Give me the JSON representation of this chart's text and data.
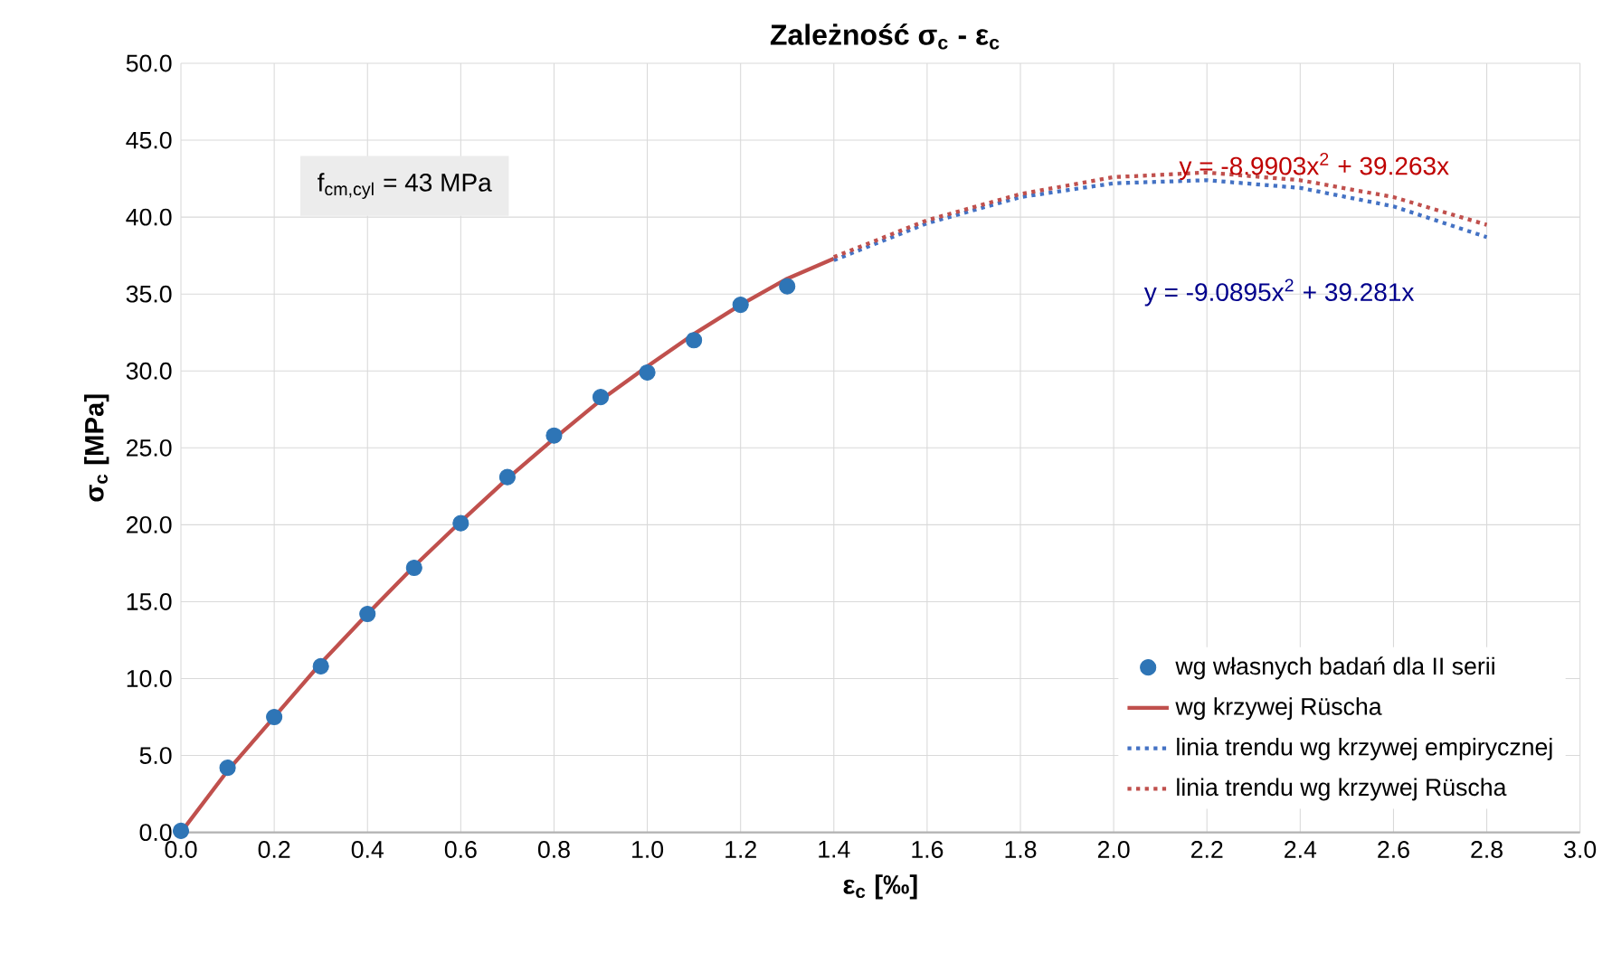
{
  "chart_data": {
    "type": "line",
    "title": "Zależność σ$_{c}$ - ε$_{c}$",
    "xlabel": "ε$_{c}$ [‰]",
    "ylabel": "σ$_{c}$ [MPa]",
    "xlim": [
      0,
      3
    ],
    "ylim": [
      0,
      50
    ],
    "xticks": [
      {
        "value": 0,
        "label": "0.0"
      },
      {
        "value": 0.2,
        "label": "0.2"
      },
      {
        "value": 0.4,
        "label": "0.4"
      },
      {
        "value": 0.6,
        "label": "0.6"
      },
      {
        "value": 0.8,
        "label": "0.8"
      },
      {
        "value": 1.0,
        "label": "1.0"
      },
      {
        "value": 1.2,
        "label": "1.2"
      },
      {
        "value": 1.4,
        "label": "1.4"
      },
      {
        "value": 1.6,
        "label": "1.6"
      },
      {
        "value": 1.8,
        "label": "1.8"
      },
      {
        "value": 2.0,
        "label": "2.0"
      },
      {
        "value": 2.2,
        "label": "2.2"
      },
      {
        "value": 2.4,
        "label": "2.4"
      },
      {
        "value": 2.6,
        "label": "2.6"
      },
      {
        "value": 2.8,
        "label": "2.8"
      },
      {
        "value": 3.0,
        "label": "3.0"
      }
    ],
    "yticks": [
      {
        "value": 0,
        "label": "0.0"
      },
      {
        "value": 5,
        "label": "5.0"
      },
      {
        "value": 10,
        "label": "10.0"
      },
      {
        "value": 15,
        "label": "15.0"
      },
      {
        "value": 20,
        "label": "20.0"
      },
      {
        "value": 25,
        "label": "25.0"
      },
      {
        "value": 30,
        "label": "30.0"
      },
      {
        "value": 35,
        "label": "35.0"
      },
      {
        "value": 40,
        "label": "40.0"
      },
      {
        "value": 45,
        "label": "45.0"
      },
      {
        "value": 50,
        "label": "50.0"
      }
    ],
    "grid": true,
    "legend": "bottom right",
    "marker": "circle",
    "series": [
      {
        "name": "wg własnych badań dla II serii",
        "type": "scatter",
        "color": "#2e75b6",
        "x": [
          0,
          0.1,
          0.2,
          0.3,
          0.4,
          0.5,
          0.6,
          0.7,
          0.8,
          0.9,
          1.0,
          1.1,
          1.2,
          1.3
        ],
        "values": [
          0.1,
          4.2,
          7.5,
          10.8,
          14.2,
          17.2,
          20.1,
          23.1,
          25.8,
          28.3,
          29.9,
          32.0,
          34.3,
          35.5
        ]
      },
      {
        "name": "wg krzywej Rüscha",
        "marker": "none",
        "line_style": "solid",
        "color": "#c0504d",
        "x": [
          0,
          0.1,
          0.2,
          0.3,
          0.4,
          0.5,
          0.6,
          0.7,
          0.8,
          0.9,
          1.0,
          1.1,
          1.2,
          1.3,
          1.4
        ],
        "values": [
          0,
          4.0,
          7.5,
          11.0,
          14.2,
          17.3,
          20.2,
          23.0,
          25.6,
          28.1,
          30.3,
          32.4,
          34.3,
          36.0,
          37.3
        ]
      },
      {
        "name": "linia trendu wg krzywej empirycznej",
        "marker": "none",
        "line_style": "dotted",
        "color": "#4472c4",
        "x": [
          1.4,
          1.6,
          1.8,
          2.0,
          2.2,
          2.4,
          2.6,
          2.8
        ],
        "values": [
          37.2,
          39.6,
          41.3,
          42.2,
          42.4,
          41.9,
          40.7,
          38.7
        ]
      },
      {
        "name": "linia trendu wg krzywej Rüscha",
        "marker": "none",
        "line_style": "dotted",
        "color": "#c0504d",
        "x": [
          1.4,
          1.6,
          1.8,
          2.0,
          2.2,
          2.4,
          2.6,
          2.8
        ],
        "values": [
          37.4,
          39.8,
          41.5,
          42.6,
          42.9,
          42.4,
          41.3,
          39.5
        ]
      }
    ],
    "annotations": [
      "y = -8.9903x$^{2}$ + 39.263x",
      "y = -9.0895x$^{2}$ + 39.281x",
      "f$_{cm,cyl}$ = 43 MPa"
    ]
  }
}
